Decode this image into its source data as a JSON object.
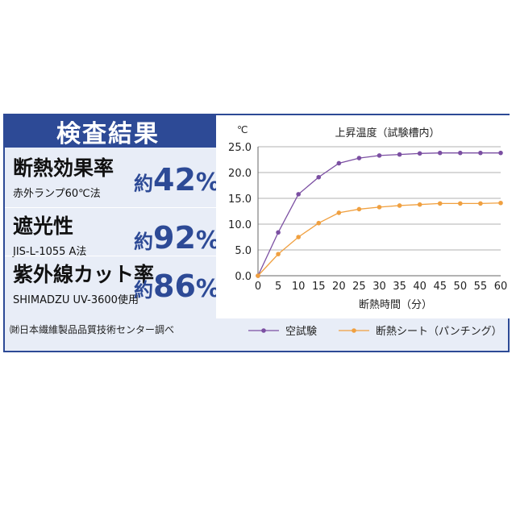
{
  "header": {
    "title": "検査結果"
  },
  "metrics": [
    {
      "name": "断熱効果率",
      "sub": "赤外ランプ60℃法",
      "prefix": "約",
      "number": "42",
      "unit": "%"
    },
    {
      "name": "遮光性",
      "sub": "JIS-L-1055 A法",
      "prefix": "約",
      "number": "92",
      "unit": "%"
    },
    {
      "name": "紫外線カット率",
      "sub": "SHIMADZU UV-3600使用",
      "prefix": "約",
      "number": "86",
      "unit": "%"
    }
  ],
  "credit": "㈶日本繊維製品品質技術センター調べ",
  "chart_data": {
    "type": "line",
    "title": "上昇温度（試験槽内）",
    "xlabel": "断熱時間（分）",
    "ylabel": "℃",
    "x": [
      0,
      5,
      10,
      15,
      20,
      25,
      30,
      35,
      40,
      45,
      50,
      55,
      60
    ],
    "xlim": [
      0,
      60
    ],
    "ylim": [
      0,
      25
    ],
    "xticks": [
      "0",
      "5",
      "10",
      "15",
      "20",
      "25",
      "30",
      "35",
      "40",
      "45",
      "50",
      "55",
      "60"
    ],
    "yticks": [
      "0.0",
      "5.0",
      "10.0",
      "15.0",
      "20.0",
      "25.0"
    ],
    "grid": "horizontal",
    "legend": "bottom",
    "series": [
      {
        "name": "空試験",
        "color": "#7b4fa2",
        "values": [
          0,
          8.4,
          15.8,
          19.1,
          21.8,
          22.8,
          23.3,
          23.5,
          23.7,
          23.8,
          23.8,
          23.8,
          23.8
        ]
      },
      {
        "name": "断熱シート（パンチング）",
        "color": "#f0a040",
        "values": [
          0,
          4.2,
          7.5,
          10.2,
          12.2,
          12.9,
          13.3,
          13.6,
          13.8,
          14.0,
          14.0,
          14.0,
          14.1
        ]
      }
    ]
  }
}
